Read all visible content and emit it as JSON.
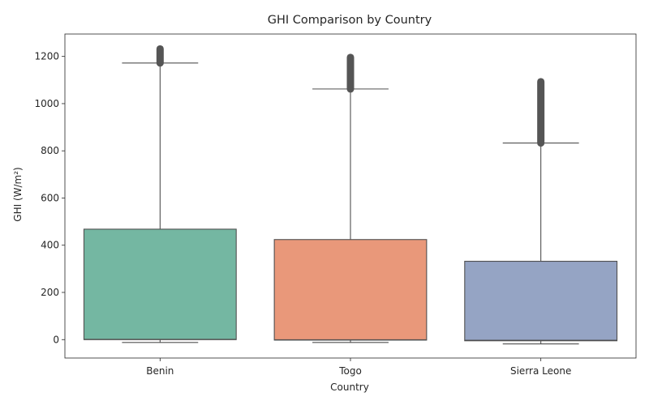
{
  "chart_data": {
    "type": "box",
    "title": "GHI Comparison by Country",
    "xlabel": "Country",
    "ylabel": "GHI (W/m²)",
    "ylim": [
      -78,
      1295
    ],
    "yticks": [
      0,
      200,
      400,
      600,
      800,
      1000,
      1200
    ],
    "grid": false,
    "legend": "none",
    "categories": [
      "Benin",
      "Togo",
      "Sierra Leone"
    ],
    "series": [
      {
        "category": "Benin",
        "color": "#74b7a2",
        "whisker_low": -12,
        "q1": 0,
        "median": 1,
        "q3": 468,
        "whisker_high": 1172,
        "outliers_min": 1172,
        "outliers_max": 1232
      },
      {
        "category": "Togo",
        "color": "#e9987a",
        "whisker_low": -12,
        "q1": -2,
        "median": -1,
        "q3": 424,
        "whisker_high": 1062,
        "outliers_min": 1062,
        "outliers_max": 1196
      },
      {
        "category": "Sierra Leone",
        "color": "#95a4c4",
        "whisker_low": -18,
        "q1": -5,
        "median": -3,
        "q3": 332,
        "whisker_high": 833,
        "outliers_min": 833,
        "outliers_max": 1093
      }
    ]
  }
}
